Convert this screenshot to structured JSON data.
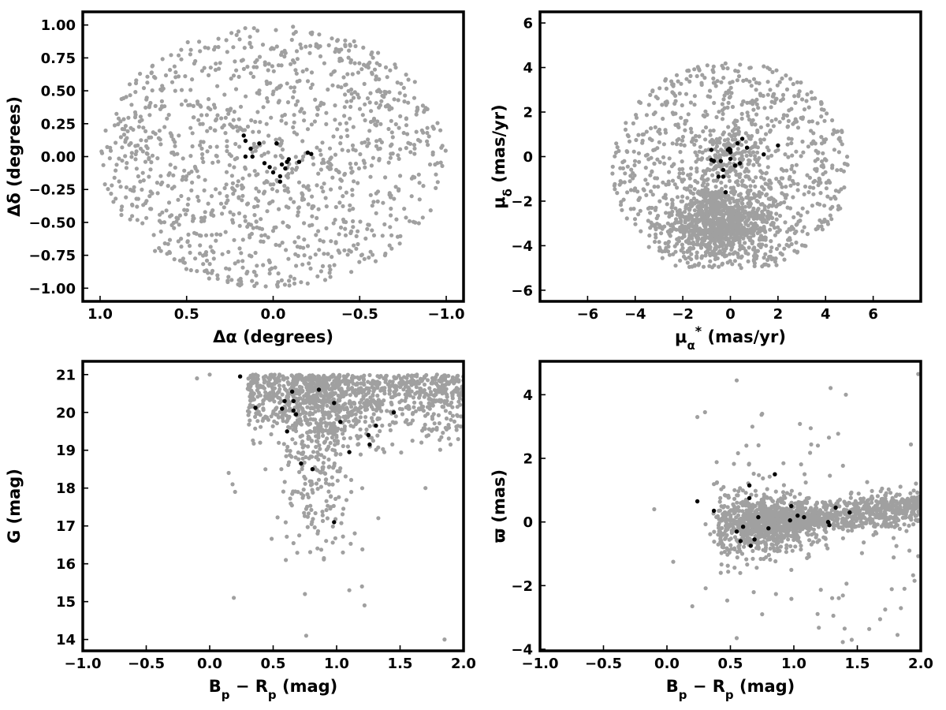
{
  "chart_data": [
    {
      "type": "scatter",
      "xlabel_parts": [
        {
          "t": "Δα (degrees)"
        }
      ],
      "ylabel_parts": [
        {
          "t": "Δδ (degrees)"
        }
      ],
      "xlim": [
        1.1,
        -1.1
      ],
      "ylim": [
        -1.1,
        1.1
      ],
      "x_inverted": true,
      "xticks": [
        1.0,
        0.5,
        0.0,
        -0.5,
        -1.0
      ],
      "xtick_labels": [
        "1.0",
        "0.5",
        "0.0",
        "−0.5",
        "−1.0"
      ],
      "yticks": [
        1.0,
        0.75,
        0.5,
        0.25,
        0.0,
        -0.25,
        -0.5,
        -0.75,
        -1.0
      ],
      "ytick_labels": [
        "1.00",
        "0.75",
        "0.50",
        "0.25",
        "0.00",
        "−0.25",
        "−0.50",
        "−0.75",
        "−1.00"
      ],
      "grid": false,
      "background_points": {
        "color": "#a0a0a0",
        "approx_count": 1200,
        "distribution": "uniform disk of radius 1 degree centred on (0, 0)"
      },
      "highlight_series": {
        "color": "#000000",
        "points": [
          [
            0.17,
            0.16
          ],
          [
            0.16,
            0.12
          ],
          [
            0.13,
            0.06
          ],
          [
            0.16,
            0.0
          ],
          [
            0.12,
            0.0
          ],
          [
            0.08,
            0.1
          ],
          [
            0.05,
            -0.05
          ],
          [
            0.02,
            -0.08
          ],
          [
            -0.02,
            0.1
          ],
          [
            0.0,
            -0.12
          ],
          [
            -0.04,
            -0.15
          ],
          [
            -0.05,
            -0.06
          ],
          [
            -0.08,
            -0.04
          ],
          [
            -0.09,
            -0.02
          ],
          [
            -0.07,
            -0.09
          ],
          [
            -0.02,
            0.1
          ],
          [
            -0.15,
            -0.04
          ],
          [
            -0.2,
            0.03
          ],
          [
            -0.22,
            0.02
          ],
          [
            -0.04,
            -0.19
          ]
        ]
      }
    },
    {
      "type": "scatter",
      "xlabel_parts": [
        {
          "t": "μ"
        },
        {
          "t": "α",
          "sub": true
        },
        {
          "t": "*",
          "sup": true
        },
        {
          "t": " (mas/yr)"
        }
      ],
      "ylabel_parts": [
        {
          "t": "μ"
        },
        {
          "t": "δ",
          "sub": true
        },
        {
          "t": " (mas/yr)"
        }
      ],
      "xlim": [
        -8,
        8
      ],
      "ylim": [
        -6.5,
        6.5
      ],
      "xticks": [
        -6,
        -4,
        -2,
        0,
        2,
        4,
        6
      ],
      "xtick_labels": [
        "−6",
        "−4",
        "−2",
        "0",
        "2",
        "4",
        "6"
      ],
      "yticks": [
        6,
        4,
        2,
        0,
        -2,
        -4,
        -6
      ],
      "ytick_labels": [
        "6",
        "4",
        "2",
        "0",
        "−2",
        "−4",
        "−6"
      ],
      "grid": false,
      "background_points": {
        "color": "#a0a0a0",
        "approx_count": 1700,
        "distribution": "disk of radius ~5 mas/yr centred near (0, -0.5), strong concentration around (-0.5, -3)"
      },
      "highlight_series": {
        "color": "#000000",
        "points": [
          [
            -0.8,
            0.3
          ],
          [
            -0.7,
            -0.2
          ],
          [
            -0.8,
            -0.15
          ],
          [
            -0.1,
            0.3
          ],
          [
            0.0,
            0.2
          ],
          [
            -0.05,
            0.35
          ],
          [
            0.5,
            0.8
          ],
          [
            0.3,
            0.6
          ],
          [
            0.2,
            -0.4
          ],
          [
            0.0,
            -0.1
          ],
          [
            -0.3,
            -0.6
          ],
          [
            -0.3,
            -0.9
          ],
          [
            -0.5,
            -0.9
          ],
          [
            -0.2,
            -1.6
          ],
          [
            0.4,
            -0.3
          ],
          [
            0.7,
            0.4
          ],
          [
            1.4,
            0.1
          ],
          [
            2.0,
            0.5
          ],
          [
            0.0,
            0.3
          ],
          [
            -0.4,
            -0.2
          ]
        ]
      }
    },
    {
      "type": "scatter",
      "xlabel_parts": [
        {
          "t": "B"
        },
        {
          "t": "p",
          "sub": true
        },
        {
          "t": " − R"
        },
        {
          "t": "p",
          "sub": true
        },
        {
          "t": " (mag)"
        }
      ],
      "ylabel_parts": [
        {
          "t": "G (mag)"
        }
      ],
      "xlim": [
        -1.0,
        2.0
      ],
      "ylim": [
        13.7,
        21.35
      ],
      "xticks": [
        -1.0,
        -0.5,
        0.0,
        0.5,
        1.0,
        1.5,
        2.0
      ],
      "xtick_labels": [
        "−1.0",
        "−0.5",
        "0.0",
        "0.5",
        "1.0",
        "1.5",
        "2.0"
      ],
      "yticks": [
        14,
        15,
        16,
        17,
        18,
        19,
        20,
        21
      ],
      "ytick_labels": [
        "14",
        "15",
        "16",
        "17",
        "18",
        "19",
        "20",
        "21"
      ],
      "grid": false,
      "background_points": {
        "color": "#a0a0a0",
        "approx_count": 1500,
        "distribution": "colour-magnitude diagram: dense band G 19-21 across Bp-Rp 0.3-2.0, plume down to G~16.5 near Bp-Rp 0.8-1.0"
      },
      "highlight_series": {
        "color": "#000000",
        "points": [
          [
            0.24,
            20.95
          ],
          [
            0.36,
            20.12
          ],
          [
            0.59,
            20.3
          ],
          [
            0.61,
            19.5
          ],
          [
            0.65,
            20.55
          ],
          [
            0.66,
            20.3
          ],
          [
            0.66,
            20.05
          ],
          [
            0.68,
            19.95
          ],
          [
            0.72,
            18.65
          ],
          [
            0.81,
            18.5
          ],
          [
            0.86,
            20.6
          ],
          [
            0.98,
            20.25
          ],
          [
            0.98,
            17.1
          ],
          [
            1.03,
            19.75
          ],
          [
            1.1,
            18.95
          ],
          [
            1.25,
            19.4
          ],
          [
            1.26,
            19.15
          ],
          [
            1.31,
            19.65
          ],
          [
            1.45,
            20.0
          ],
          [
            0.57,
            20.1
          ]
        ]
      }
    },
    {
      "type": "scatter",
      "xlabel_parts": [
        {
          "t": "B"
        },
        {
          "t": "p",
          "sub": true
        },
        {
          "t": " − R"
        },
        {
          "t": "p",
          "sub": true
        },
        {
          "t": " (mag)"
        }
      ],
      "ylabel_parts": [
        {
          "t": "ϖ (mas)"
        }
      ],
      "xlim": [
        -1.0,
        2.0
      ],
      "ylim": [
        -4.05,
        5.05
      ],
      "xticks": [
        -1.0,
        -0.5,
        0.0,
        0.5,
        1.0,
        1.5,
        2.0
      ],
      "xtick_labels": [
        "−1.0",
        "−0.5",
        "0.0",
        "0.5",
        "1.0",
        "1.5",
        "2.0"
      ],
      "yticks": [
        4,
        2,
        0,
        -2,
        -4
      ],
      "ytick_labels": [
        "4",
        "2",
        "0",
        "−2",
        "−4"
      ],
      "grid": false,
      "background_points": {
        "color": "#a0a0a0",
        "approx_count": 1500,
        "distribution": "band around parallax 0 rising to ~0.8 at Bp-Rp 2.0; dense core near Bp-Rp 0.6-1.1, scatter widening toward faint/blue"
      },
      "highlight_series": {
        "color": "#000000",
        "points": [
          [
            0.24,
            0.65
          ],
          [
            0.37,
            0.35
          ],
          [
            0.55,
            -0.3
          ],
          [
            0.58,
            -0.6
          ],
          [
            0.6,
            -0.15
          ],
          [
            0.65,
            1.15
          ],
          [
            0.65,
            0.75
          ],
          [
            0.66,
            -0.75
          ],
          [
            0.69,
            -0.55
          ],
          [
            0.72,
            0.15
          ],
          [
            0.85,
            1.5
          ],
          [
            0.8,
            -0.2
          ],
          [
            0.97,
            0.05
          ],
          [
            0.98,
            0.5
          ],
          [
            1.03,
            0.2
          ],
          [
            1.08,
            0.15
          ],
          [
            1.27,
            0.0
          ],
          [
            1.28,
            -0.1
          ],
          [
            1.33,
            0.45
          ],
          [
            1.44,
            0.3
          ]
        ]
      }
    }
  ]
}
